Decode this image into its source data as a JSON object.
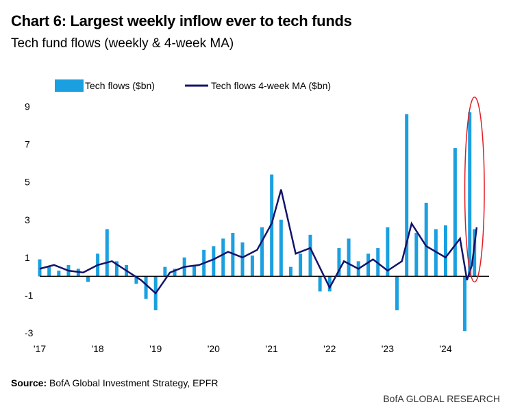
{
  "header": {
    "title": "Chart 6: Largest weekly inflow ever to tech funds",
    "subtitle": "Tech fund flows (weekly & 4-week MA)"
  },
  "footer": {
    "source_label": "Source:",
    "source_text": "BofA Global Investment Strategy, EPFR",
    "brand": "BofA GLOBAL RESEARCH"
  },
  "colors": {
    "bars": "#1aa0e0",
    "ma_line": "#13136b",
    "highlight": "#e31b23",
    "zero_line": "#000000"
  },
  "chart_data": {
    "type": "bar+line",
    "title": "Chart 6: Largest weekly inflow ever to tech funds",
    "subtitle": "Tech fund flows (weekly & 4-week MA)",
    "xlabel": "",
    "ylabel": "",
    "ylim": [
      -3,
      10
    ],
    "yticks": [
      9,
      7,
      5,
      3,
      1,
      -1,
      -3
    ],
    "xlim": [
      "2017-01-01",
      "2024-10-01"
    ],
    "xticks": [
      {
        "label": "'17",
        "x": "2017-01-01"
      },
      {
        "label": "'18",
        "x": "2018-01-01"
      },
      {
        "label": "'19",
        "x": "2019-01-01"
      },
      {
        "label": "'20",
        "x": "2020-01-01"
      },
      {
        "label": "'21",
        "x": "2021-01-01"
      },
      {
        "label": "'22",
        "x": "2022-01-01"
      },
      {
        "label": "'23",
        "x": "2023-01-01"
      },
      {
        "label": "'24",
        "x": "2024-01-01"
      }
    ],
    "legend": {
      "position": "top-left",
      "entries": [
        "Tech flows ($bn)",
        "Tech flows 4-week MA ($bn)"
      ]
    },
    "annotation": {
      "type": "ellipse",
      "label": "",
      "x_range": [
        "2024-05-01",
        "2024-09-01"
      ],
      "y_range": [
        -0.3,
        9.5
      ]
    },
    "series": [
      {
        "name": "Tech flows ($bn)",
        "kind": "bar",
        "x": [
          "2017-01-01",
          "2017-03-01",
          "2017-05-01",
          "2017-07-01",
          "2017-09-01",
          "2017-11-01",
          "2018-01-01",
          "2018-03-01",
          "2018-05-01",
          "2018-07-01",
          "2018-09-01",
          "2018-11-01",
          "2019-01-01",
          "2019-03-01",
          "2019-05-01",
          "2019-07-01",
          "2019-09-01",
          "2019-11-01",
          "2020-01-01",
          "2020-03-01",
          "2020-05-01",
          "2020-07-01",
          "2020-09-01",
          "2020-11-01",
          "2021-01-01",
          "2021-03-01",
          "2021-05-01",
          "2021-07-01",
          "2021-09-01",
          "2021-11-01",
          "2022-01-01",
          "2022-03-01",
          "2022-05-01",
          "2022-07-01",
          "2022-09-01",
          "2022-11-01",
          "2023-01-01",
          "2023-03-01",
          "2023-05-01",
          "2023-07-01",
          "2023-09-01",
          "2023-11-01",
          "2024-01-01",
          "2024-03-01",
          "2024-05-01",
          "2024-06-01",
          "2024-07-01"
        ],
        "values": [
          0.9,
          0.5,
          0.3,
          0.6,
          0.4,
          -0.3,
          1.2,
          2.5,
          0.8,
          0.6,
          -0.4,
          -1.2,
          -1.8,
          0.5,
          0.4,
          1.0,
          0.6,
          1.4,
          1.6,
          2.0,
          2.3,
          1.8,
          1.1,
          2.6,
          5.4,
          3.0,
          0.5,
          1.2,
          2.2,
          -0.8,
          -0.8,
          1.5,
          2.0,
          0.8,
          1.2,
          1.5,
          2.6,
          -1.8,
          8.6,
          2.3,
          3.9,
          2.5,
          2.7,
          6.8,
          -2.9,
          8.7,
          2.5
        ]
      },
      {
        "name": "Tech flows 4-week MA ($bn)",
        "kind": "line",
        "x": [
          "2017-01-01",
          "2017-04-01",
          "2017-07-01",
          "2017-10-01",
          "2018-01-01",
          "2018-04-01",
          "2018-07-01",
          "2018-10-01",
          "2019-01-01",
          "2019-04-01",
          "2019-07-01",
          "2019-10-01",
          "2020-01-01",
          "2020-04-01",
          "2020-07-01",
          "2020-10-01",
          "2021-01-01",
          "2021-03-01",
          "2021-06-01",
          "2021-09-01",
          "2022-01-01",
          "2022-04-01",
          "2022-07-01",
          "2022-10-01",
          "2023-01-01",
          "2023-04-01",
          "2023-06-01",
          "2023-09-01",
          "2024-01-01",
          "2024-04-01",
          "2024-05-15",
          "2024-06-15",
          "2024-07-15"
        ],
        "values": [
          0.4,
          0.6,
          0.3,
          0.2,
          0.6,
          0.8,
          0.3,
          -0.2,
          -0.9,
          0.2,
          0.5,
          0.6,
          0.9,
          1.3,
          1.0,
          1.4,
          2.8,
          4.6,
          1.2,
          1.5,
          -0.6,
          0.8,
          0.4,
          0.9,
          0.3,
          0.8,
          2.8,
          1.6,
          1.0,
          2.0,
          -0.2,
          0.6,
          2.6
        ]
      }
    ]
  }
}
